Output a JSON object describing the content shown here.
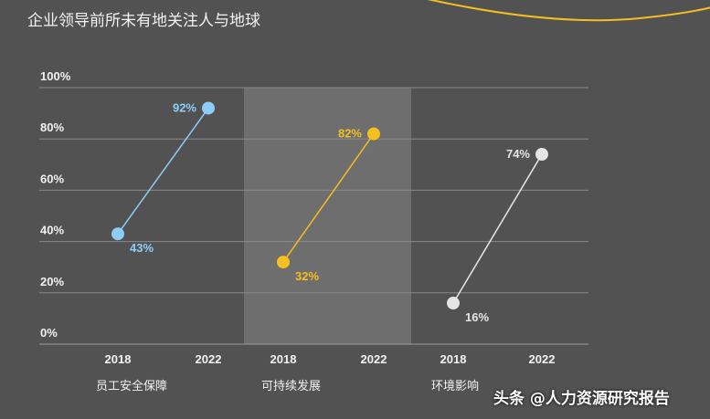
{
  "title": "企业领导前所未有地关注人与地球",
  "watermark": "头条 @人力资源研究报告",
  "chart_data": {
    "type": "line",
    "title": "企业领导前所未有地关注人与地球",
    "ylim": [
      0,
      100
    ],
    "yticks": [
      "0%",
      "20%",
      "40%",
      "60%",
      "80%",
      "100%"
    ],
    "grid": true,
    "x": [
      "2018",
      "2022"
    ],
    "series": [
      {
        "name": "员工安全保障",
        "values": [
          43,
          92
        ],
        "labels": [
          "43%",
          "92%"
        ],
        "color": "#8ecdf8"
      },
      {
        "name": "可持续发展",
        "values": [
          32,
          82
        ],
        "labels": [
          "32%",
          "82%"
        ],
        "color": "#f5bf1f"
      },
      {
        "name": "环境影响",
        "values": [
          16,
          74
        ],
        "labels": [
          "16%",
          "74%"
        ],
        "color": "#e6e6e6"
      }
    ]
  }
}
